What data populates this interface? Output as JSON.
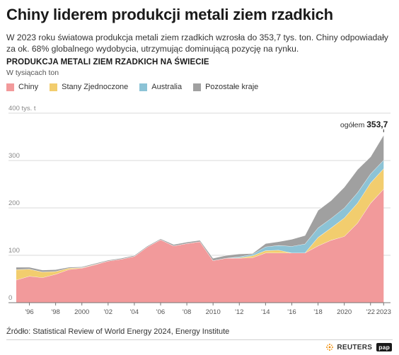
{
  "header": {
    "title": "Chiny liderem produkcji metali ziem rzadkich",
    "subtitle": "W 2023 roku światowa produkcja metali ziem rzadkich wzrosła do 353,7 tys. ton. Chiny odpowiadały za ok. 68% globalnego wydobycia, utrzymując dominującą pozycję na rynku."
  },
  "chart_title": "PRODUKCJA METALI ZIEM RZADKICH NA ŚWIECIE",
  "unit_label": "W tysiącach ton",
  "source": "Źródło: Statistical Review of World Energy 2024, Energy Institute",
  "logos": {
    "reuters": "REUTERS",
    "pap": "pap"
  },
  "colors": {
    "china": "#f29a9b",
    "usa": "#f2cd6e",
    "australia": "#8cc3d6",
    "other": "#a0a0a0",
    "grid": "#d9d9d9",
    "axis_text": "#555555"
  },
  "chart_data": {
    "type": "area",
    "stacked": true,
    "x": [
      1995,
      1996,
      1997,
      1998,
      1999,
      2000,
      2001,
      2002,
      2003,
      2004,
      2005,
      2006,
      2007,
      2008,
      2009,
      2010,
      2011,
      2012,
      2013,
      2014,
      2015,
      2016,
      2017,
      2018,
      2019,
      2020,
      2021,
      2022,
      2023
    ],
    "series": [
      {
        "name": "Chiny",
        "color_key": "china",
        "values": [
          48,
          56,
          53,
          60,
          70,
          73,
          80,
          88,
          92,
          98,
          118,
          133,
          120,
          125,
          129,
          89,
          94,
          94,
          95,
          105,
          105,
          105,
          105,
          120,
          132,
          140,
          168,
          210,
          240
        ]
      },
      {
        "name": "Stany Zjednoczone",
        "color_key": "usa",
        "values": [
          22,
          15,
          12,
          6,
          3,
          1,
          1,
          0,
          0,
          0,
          0,
          0,
          0,
          0,
          0,
          0,
          0,
          1,
          4,
          5,
          6,
          0,
          0,
          18,
          26,
          39,
          42,
          43,
          43
        ]
      },
      {
        "name": "Australia",
        "color_key": "australia",
        "values": [
          0,
          0,
          0,
          0,
          0,
          0,
          0,
          0,
          0,
          0,
          0,
          0,
          0,
          0,
          0,
          0,
          0,
          2,
          3,
          8,
          10,
          14,
          19,
          20,
          20,
          21,
          22,
          19,
          18
        ]
      },
      {
        "name": "Pozostałe kraje",
        "color_key": "other",
        "values": [
          5,
          4,
          4,
          4,
          2,
          2,
          2,
          2,
          2,
          2,
          2,
          2,
          3,
          3,
          3,
          5,
          6,
          6,
          2,
          7,
          8,
          15,
          18,
          37,
          38,
          44,
          49,
          36,
          53
        ]
      }
    ],
    "y_ticks": [
      0,
      100,
      200,
      300,
      400
    ],
    "y_tick_labels": [
      "0",
      "100",
      "200",
      "300",
      "400 tys. t"
    ],
    "ylim": [
      0,
      400
    ],
    "x_tick_labels": [
      {
        "x": 1996,
        "label": "'96"
      },
      {
        "x": 1998,
        "label": "'98"
      },
      {
        "x": 2000,
        "label": "2000"
      },
      {
        "x": 2002,
        "label": "'02"
      },
      {
        "x": 2004,
        "label": "'04"
      },
      {
        "x": 2006,
        "label": "'06"
      },
      {
        "x": 2008,
        "label": "'08"
      },
      {
        "x": 2010,
        "label": "2010"
      },
      {
        "x": 2012,
        "label": "'12"
      },
      {
        "x": 2014,
        "label": "'14"
      },
      {
        "x": 2016,
        "label": "'16"
      },
      {
        "x": 2018,
        "label": "'18"
      },
      {
        "x": 2020,
        "label": "2020"
      },
      {
        "x": 2022,
        "label": "'22"
      },
      {
        "x": 2023,
        "label": "2023"
      }
    ],
    "grid": true,
    "legend_position": "top-left",
    "annotation": {
      "x": 2023,
      "y": 353.7,
      "prefix": "ogółem",
      "value": "353,7"
    }
  }
}
